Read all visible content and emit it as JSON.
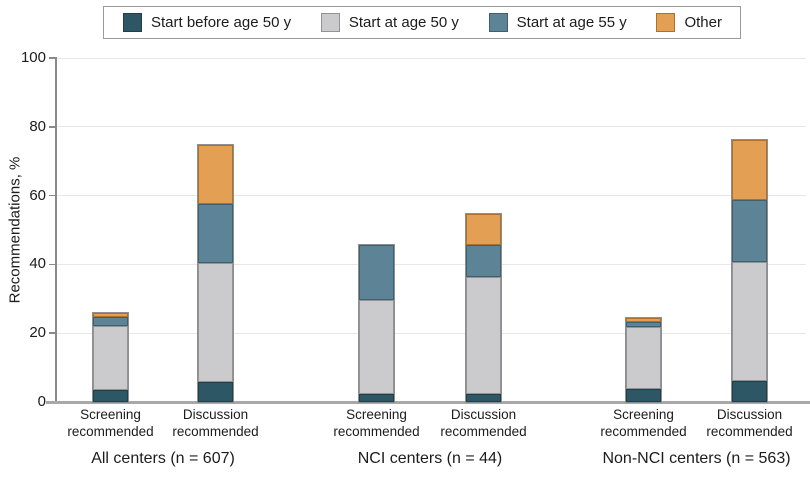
{
  "figure": {
    "y_axis_title": "Recommendations, %"
  },
  "chart_data": {
    "type": "bar",
    "stacked": true,
    "title": "",
    "xlabel": "",
    "ylabel": "Recommendations, %",
    "ylim": [
      0,
      100
    ],
    "yticks": [
      0,
      20,
      40,
      60,
      80,
      100
    ],
    "grid": "horizontal",
    "legend_position": "top",
    "series": [
      {
        "name": "Start before age 50 y",
        "fill": "#2E5766",
        "edge": "#203F4B"
      },
      {
        "name": "Start at age 50 y",
        "fill": "#CBCBCD",
        "edge": "#939395"
      },
      {
        "name": "Start at age 55 y",
        "fill": "#5D8496",
        "edge": "#40606F"
      },
      {
        "name": "Other",
        "fill": "#E3A055",
        "edge": "#AC722B"
      }
    ],
    "series_keys": [
      "start-before-age-50",
      "start-at-age-50",
      "start-at-age-55",
      "other"
    ],
    "groups": [
      {
        "label": "All centers (n = 607)",
        "bars": [
          {
            "label_lines": [
              "Screening",
              "recommended"
            ],
            "values": [
              3.6,
              18.4,
              2.7,
              1.3
            ],
            "total": 26.0
          },
          {
            "label_lines": [
              "Discussion",
              "recommended"
            ],
            "values": [
              5.8,
              34.6,
              17.3,
              17.0
            ],
            "total": 74.7
          }
        ]
      },
      {
        "label": "NCI centers (n = 44)",
        "bars": [
          {
            "label_lines": [
              "Screening",
              "recommended"
            ],
            "values": [
              2.3,
              27.3,
              15.9,
              0.0
            ],
            "total": 45.5
          },
          {
            "label_lines": [
              "Discussion",
              "recommended"
            ],
            "values": [
              2.3,
              34.1,
              9.1,
              9.1
            ],
            "total": 54.6
          }
        ]
      },
      {
        "label": "Non-NCI centers (n = 563)",
        "bars": [
          {
            "label_lines": [
              "Screening",
              "recommended"
            ],
            "values": [
              3.9,
              18.0,
              1.3,
              1.2
            ],
            "total": 24.4
          },
          {
            "label_lines": [
              "Discussion",
              "recommended"
            ],
            "values": [
              6.0,
              34.8,
              17.9,
              17.4
            ],
            "total": 76.1
          }
        ]
      }
    ]
  }
}
